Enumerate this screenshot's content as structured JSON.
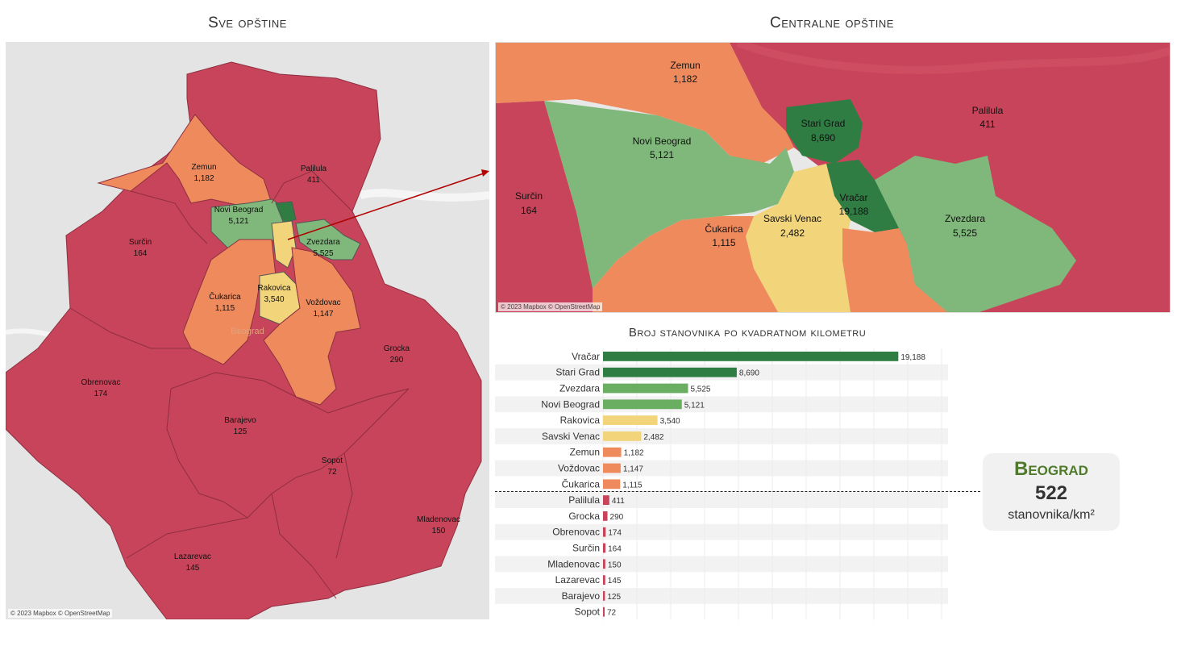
{
  "titles": {
    "left": "Sve opštine",
    "right": "Centralne opštine",
    "chart": "Broj stanovnika po kvadratnom kilometru"
  },
  "attribution": "© 2023 Mapbox © OpenStreetMap",
  "colors": {
    "dark_green": "#2f7d43",
    "green": "#7fb87a",
    "yellow": "#f2d47a",
    "orange": "#ef8a5d",
    "red": "#c8445a",
    "kpi_title": "#4f7a2c"
  },
  "map_left": {
    "city_label": "Beograd",
    "labels": [
      {
        "name": "Palilula",
        "value": "411"
      },
      {
        "name": "Zemun",
        "value": "1,182"
      },
      {
        "name": "Novi Beograd",
        "value": "5,121"
      },
      {
        "name": "Surčin",
        "value": "164"
      },
      {
        "name": "Zvezdara",
        "value": "5,525"
      },
      {
        "name": "Rakovica",
        "value": "3,540"
      },
      {
        "name": "Čukarica",
        "value": "1,115"
      },
      {
        "name": "Voždovac",
        "value": "1,147"
      },
      {
        "name": "Grocka",
        "value": "290"
      },
      {
        "name": "Obrenovac",
        "value": "174"
      },
      {
        "name": "Barajevo",
        "value": "125"
      },
      {
        "name": "Sopot",
        "value": "72"
      },
      {
        "name": "Mladenovac",
        "value": "150"
      },
      {
        "name": "Lazarevac",
        "value": "145"
      }
    ]
  },
  "map_right": {
    "labels": [
      {
        "name": "Zemun",
        "value": "1,182"
      },
      {
        "name": "Palilula",
        "value": "411"
      },
      {
        "name": "Stari Grad",
        "value": "8,690"
      },
      {
        "name": "Novi Beograd",
        "value": "5,121"
      },
      {
        "name": "Surčin",
        "value": "164"
      },
      {
        "name": "Vračar",
        "value": "19,188"
      },
      {
        "name": "Zvezdara",
        "value": "5,525"
      },
      {
        "name": "Čukarica",
        "value": "1,115"
      },
      {
        "name": "Savski Venac",
        "value": "2,482"
      }
    ]
  },
  "chart_data": {
    "type": "bar",
    "orientation": "horizontal",
    "categories": [
      "Vračar",
      "Stari Grad",
      "Zvezdara",
      "Novi Beograd",
      "Rakovica",
      "Savski Venac",
      "Zemun",
      "Voždovac",
      "Čukarica",
      "Palilula",
      "Grocka",
      "Obrenovac",
      "Surčin",
      "Mladenovac",
      "Lazarevac",
      "Barajevo",
      "Sopot"
    ],
    "values": [
      19188,
      8690,
      5525,
      5121,
      3540,
      2482,
      1182,
      1147,
      1115,
      411,
      290,
      174,
      164,
      150,
      145,
      125,
      72
    ],
    "value_labels": [
      "19,188",
      "8,690",
      "5,525",
      "5,121",
      "3,540",
      "2,482",
      "1,182",
      "1,147",
      "1,115",
      "411",
      "290",
      "174",
      "164",
      "150",
      "145",
      "125",
      "72"
    ],
    "colors": [
      "#2f7d43",
      "#2f7d43",
      "#6aae62",
      "#6aae62",
      "#f2d47a",
      "#f2d47a",
      "#ef8a5d",
      "#ef8a5d",
      "#ef8a5d",
      "#c8445a",
      "#c8445a",
      "#c8445a",
      "#c8445a",
      "#c8445a",
      "#c8445a",
      "#c8445a",
      "#c8445a"
    ],
    "xlim": [
      0,
      22000
    ],
    "title": "Broj stanovnika po kvadratnom kilometru"
  },
  "kpi": {
    "name": "Beograd",
    "value": "522",
    "unit": "stanovnika/km²"
  }
}
